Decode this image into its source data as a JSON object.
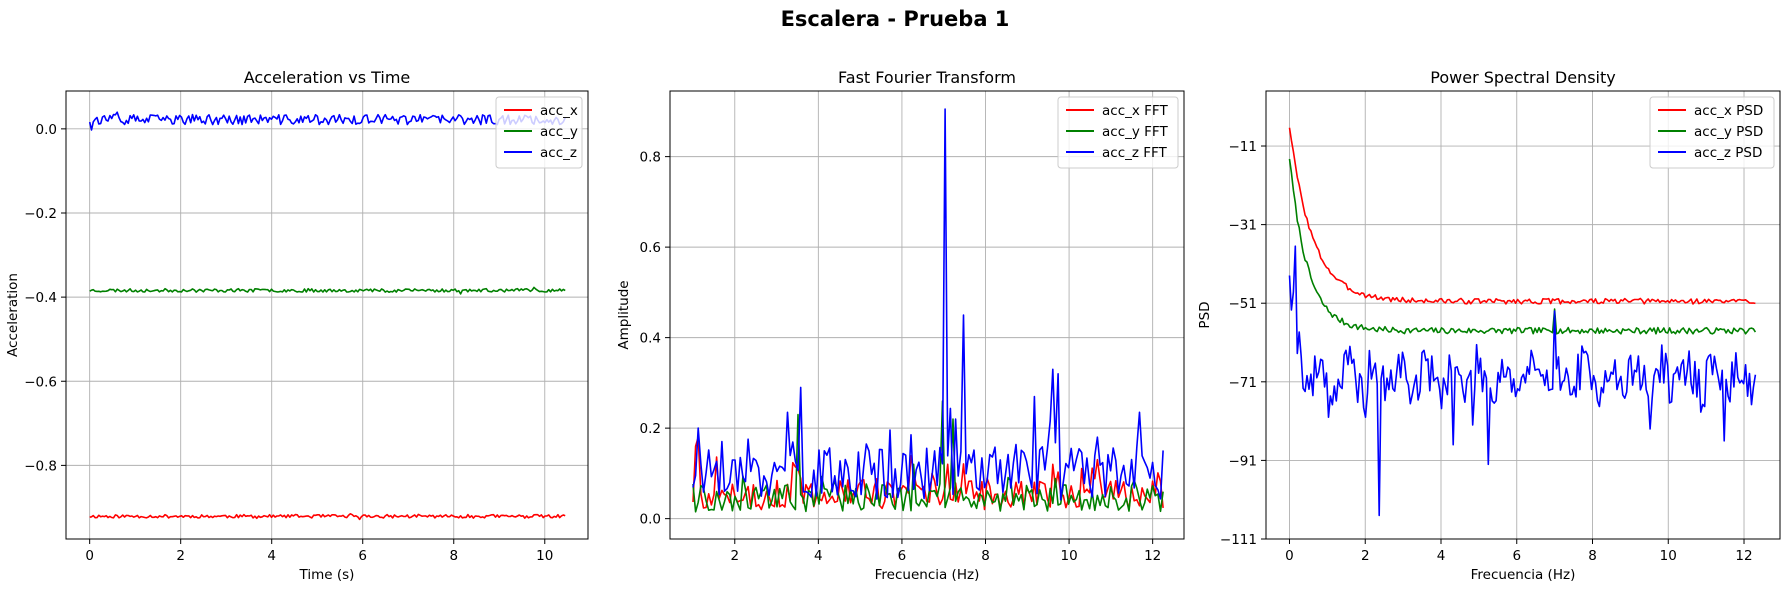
{
  "figure": {
    "suptitle": "Escalera - Prueba 1"
  },
  "colors": {
    "acc_x": "#ff0000",
    "acc_y": "#008000",
    "acc_z": "#0000ff",
    "grid": "#b0b0b0"
  },
  "chart_data": [
    {
      "type": "line",
      "title": "Acceleration vs Time",
      "xlabel": "Time (s)",
      "ylabel": "Acceleration",
      "xlim": [
        -0.52,
        10.95
      ],
      "ylim": [
        -0.975,
        0.09
      ],
      "xticks": [
        0,
        2,
        4,
        6,
        8,
        10
      ],
      "xtick_labels": [
        "0",
        "2",
        "4",
        "6",
        "8",
        "10"
      ],
      "yticks": [
        0.0,
        -0.2,
        -0.4,
        -0.6,
        -0.8
      ],
      "ytick_labels": [
        "0.0",
        "−0.2",
        "−0.4",
        "−0.6",
        "−0.8"
      ],
      "grid": true,
      "legend_position": "top-right",
      "series": [
        {
          "name": "acc_x",
          "color": "#ff0000",
          "kind": "noise",
          "x_start": 0,
          "x_end": 10.45,
          "n": 260,
          "mean": -0.921,
          "amp": 0.004,
          "seed": 11
        },
        {
          "name": "acc_y",
          "color": "#008000",
          "kind": "noise",
          "x_start": 0,
          "x_end": 10.45,
          "n": 260,
          "mean": -0.384,
          "amp": 0.004,
          "seed": 23
        },
        {
          "name": "acc_z",
          "color": "#0000ff",
          "kind": "noise",
          "x_start": 0,
          "x_end": 10.45,
          "n": 260,
          "mean": 0.022,
          "amp": 0.012,
          "seed": 37
        }
      ]
    },
    {
      "type": "line",
      "title": "Fast Fourier Transform",
      "xlabel": "Frecuencia (Hz)",
      "ylabel": "Amplitude",
      "xlim": [
        0.45,
        12.75
      ],
      "ylim": [
        -0.045,
        0.945
      ],
      "xticks": [
        2,
        4,
        6,
        8,
        10,
        12
      ],
      "xtick_labels": [
        "2",
        "4",
        "6",
        "8",
        "10",
        "12"
      ],
      "yticks": [
        0.0,
        0.2,
        0.4,
        0.6,
        0.8
      ],
      "ytick_labels": [
        "0.0",
        "0.2",
        "0.4",
        "0.6",
        "0.8"
      ],
      "grid": true,
      "legend_position": "top-right",
      "series": [
        {
          "name": "acc_x FFT",
          "color": "#ff0000",
          "kind": "spectrum",
          "x_start": 1.0,
          "x_end": 12.25,
          "n": 180,
          "base": 0.055,
          "amp": 0.035,
          "seed": 5,
          "peaks": [
            [
              1.05,
              0.16
            ],
            [
              1.15,
              0.18
            ],
            [
              3.5,
              0.11
            ],
            [
              7.1,
              0.12
            ],
            [
              9.6,
              0.12
            ]
          ]
        },
        {
          "name": "acc_y FFT",
          "color": "#008000",
          "kind": "spectrum",
          "x_start": 1.0,
          "x_end": 12.25,
          "n": 180,
          "base": 0.045,
          "amp": 0.03,
          "seed": 9,
          "peaks": [
            [
              3.5,
              0.23
            ],
            [
              7.0,
              0.26
            ],
            [
              7.2,
              0.22
            ],
            [
              6.3,
              0.12
            ]
          ]
        },
        {
          "name": "acc_z FFT",
          "color": "#0000ff",
          "kind": "spectrum",
          "x_start": 1.0,
          "x_end": 12.25,
          "n": 180,
          "base": 0.1,
          "amp": 0.06,
          "seed": 17,
          "peaks": [
            [
              1.15,
              0.2
            ],
            [
              3.55,
              0.29
            ],
            [
              7.05,
              0.905
            ],
            [
              7.45,
              0.45
            ],
            [
              7.3,
              0.22
            ],
            [
              9.15,
              0.27
            ],
            [
              9.6,
              0.33
            ],
            [
              9.75,
              0.32
            ],
            [
              11.7,
              0.235
            ]
          ]
        }
      ]
    },
    {
      "type": "line",
      "title": "Power Spectral Density",
      "xlabel": "Frecuencia (Hz)",
      "ylabel": "PSD",
      "xlim": [
        -0.62,
        12.95
      ],
      "ylim": [
        -111,
        3
      ],
      "xticks": [
        0,
        2,
        4,
        6,
        8,
        10,
        12
      ],
      "xtick_labels": [
        "0",
        "2",
        "4",
        "6",
        "8",
        "10",
        "12"
      ],
      "yticks": [
        -11,
        -31,
        -51,
        -71,
        -91,
        -111
      ],
      "ytick_labels": [
        "−11",
        "−31",
        "−51",
        "−71",
        "−91",
        "−111"
      ],
      "grid": true,
      "legend_position": "top-right",
      "series": [
        {
          "name": "acc_x PSD",
          "color": "#ff0000",
          "kind": "decay",
          "x_start": 0,
          "x_end": 12.3,
          "n": 240,
          "start": -4.5,
          "end": -50.5,
          "rate": 1.1,
          "amp": 0.7,
          "seed": 3
        },
        {
          "name": "acc_y PSD",
          "color": "#008000",
          "kind": "decay",
          "x_start": 0,
          "x_end": 12.3,
          "n": 240,
          "start": -12,
          "end": -58,
          "rate": 1.4,
          "amp": 0.8,
          "seed": 7,
          "peaks": [
            [
              7.0,
              -52.5
            ]
          ]
        },
        {
          "name": "acc_z PSD",
          "color": "#0000ff",
          "kind": "noisy_psd",
          "x_start": 0,
          "x_end": 12.3,
          "n": 240,
          "start": -38,
          "end": -70,
          "rate": 4.0,
          "amp": 5.5,
          "seed": 19,
          "peaks": [
            [
              7.0,
              -53
            ],
            [
              0.15,
              -36.5
            ]
          ],
          "dips": [
            [
              2.35,
              -105
            ],
            [
              5.25,
              -92
            ],
            [
              4.3,
              -87
            ],
            [
              11.5,
              -86
            ],
            [
              1.05,
              -80
            ],
            [
              2.0,
              -80
            ],
            [
              9.5,
              -83
            ],
            [
              4.85,
              -82
            ]
          ]
        }
      ]
    }
  ]
}
